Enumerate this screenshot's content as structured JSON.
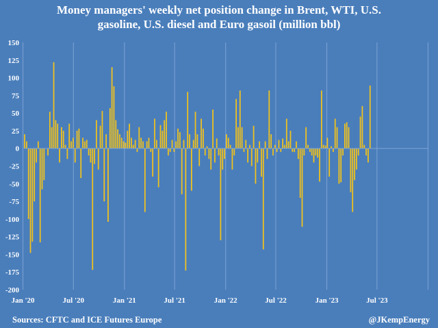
{
  "chart_data": {
    "type": "bar",
    "title_lines": [
      "Money managers' weekly net position change in Brent, WTI, U.S.",
      "gasoline, U.S. diesel and Euro gasoil (million bbl)"
    ],
    "xlabel": "",
    "ylabel": "",
    "ylim": [
      -200,
      150
    ],
    "yticks": [
      150,
      125,
      100,
      75,
      50,
      25,
      0,
      -25,
      -50,
      -75,
      -100,
      -125,
      -150,
      -175,
      -200
    ],
    "x_tick_labels": [
      "Jan '20",
      "Jul '20",
      "Jan '21",
      "Jul '21",
      "Jan '22",
      "Jul '22",
      "Jan '23",
      "Jul '23"
    ],
    "x_range": [
      "2020-01-07",
      "2023-12-31"
    ],
    "grid": "vertical",
    "bar_color": "#f2c21b",
    "frequency": "weekly",
    "first_week": "2020-01-07",
    "values": [
      20,
      10,
      -100,
      -148,
      -132,
      -75,
      -20,
      10,
      -133,
      -58,
      -45,
      0,
      -10,
      52,
      30,
      122,
      40,
      35,
      -20,
      30,
      25,
      5,
      -15,
      35,
      10,
      15,
      -20,
      25,
      28,
      -42,
      15,
      10,
      12,
      -10,
      -20,
      -172,
      -22,
      40,
      -30,
      32,
      53,
      -75,
      20,
      -104,
      57,
      115,
      88,
      40,
      27,
      20,
      15,
      10,
      8,
      25,
      35,
      15,
      5,
      12,
      -5,
      30,
      15,
      10,
      -90,
      10,
      15,
      -5,
      -40,
      42,
      12,
      -55,
      33,
      25,
      40,
      52,
      -10,
      -5,
      12,
      -5,
      10,
      28,
      23,
      -65,
      12,
      -173,
      80,
      20,
      -60,
      12,
      52,
      20,
      -25,
      42,
      28,
      -10,
      3,
      -15,
      -30,
      55,
      -20,
      14,
      -10,
      -130,
      -30,
      -15,
      20,
      15,
      5,
      -30,
      -10,
      70,
      30,
      82,
      30,
      -5,
      12,
      -20,
      5,
      -25,
      32,
      -50,
      -20,
      10,
      -40,
      -143,
      10,
      -15,
      82,
      20,
      -10,
      5,
      -5,
      12,
      -5,
      14,
      5,
      42,
      10,
      25,
      -5,
      -5,
      10,
      -15,
      -70,
      -111,
      -10,
      30,
      5,
      -5,
      -10,
      -20,
      -10,
      -13,
      -47,
      82,
      5,
      4,
      15,
      -40,
      3,
      -5,
      42,
      30,
      -50,
      -48,
      -10,
      35,
      37,
      30,
      -62,
      -90,
      -45,
      -30,
      -10,
      45,
      60,
      5,
      -10,
      -20,
      89
    ]
  },
  "footer": {
    "source": "Sources: CFTC and ICE Futures Europe",
    "credit": "@JKempEnergy"
  },
  "colors": {
    "background": "#4a7ebb",
    "bars": "#f2c21b",
    "grid": "#7ea3d2",
    "text": "#ffffff"
  }
}
